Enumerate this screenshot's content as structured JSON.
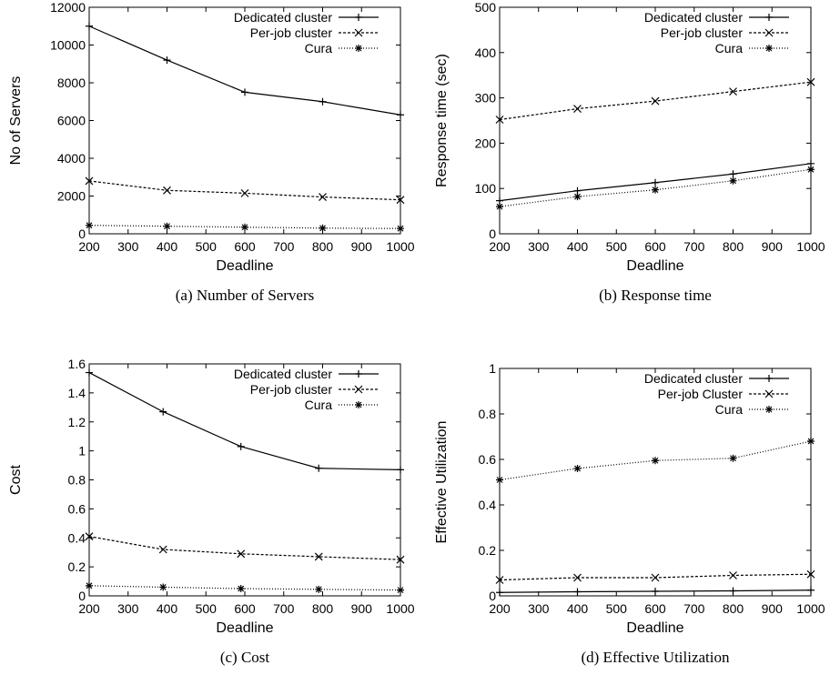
{
  "chart_data": [
    {
      "type": "line",
      "caption": "(a) Number of Servers",
      "xlabel": "Deadline",
      "ylabel": "No of Servers",
      "xlim": [
        200,
        1000
      ],
      "ylim": [
        0,
        12000
      ],
      "xticks": [
        "200",
        "300",
        "400",
        "500",
        "600",
        "700",
        "800",
        "900",
        "1000"
      ],
      "yticks": [
        "0",
        "2000",
        "4000",
        "6000",
        "8000",
        "10000",
        "12000"
      ],
      "x": [
        200,
        400,
        600,
        800,
        1000
      ],
      "legend_position": "top-right",
      "series": [
        {
          "name": "Dedicated cluster",
          "marker": "plus",
          "dash": "",
          "values": [
            11000,
            9200,
            7500,
            7000,
            6300
          ]
        },
        {
          "name": "Per-job cluster",
          "marker": "x",
          "dash": "3,2",
          "values": [
            2800,
            2300,
            2150,
            1950,
            1800
          ]
        },
        {
          "name": "Cura",
          "marker": "star",
          "dash": "1,2",
          "values": [
            450,
            400,
            350,
            300,
            280
          ]
        }
      ]
    },
    {
      "type": "line",
      "caption": "(b) Response time",
      "xlabel": "Deadline",
      "ylabel": "Response time (sec)",
      "xlim": [
        200,
        1000
      ],
      "ylim": [
        0,
        500
      ],
      "xticks": [
        "200",
        "300",
        "400",
        "500",
        "600",
        "700",
        "800",
        "900",
        "1000"
      ],
      "yticks": [
        "0",
        "100",
        "200",
        "300",
        "400",
        "500"
      ],
      "x": [
        200,
        400,
        600,
        800,
        1000
      ],
      "legend_position": "top-right",
      "series": [
        {
          "name": "Dedicated cluster",
          "marker": "plus",
          "dash": "",
          "values": [
            73,
            95,
            113,
            132,
            155
          ]
        },
        {
          "name": "Per-job cluster",
          "marker": "x",
          "dash": "3,2",
          "values": [
            252,
            276,
            293,
            314,
            335
          ]
        },
        {
          "name": "Cura",
          "marker": "star",
          "dash": "1,2",
          "values": [
            60,
            82,
            97,
            117,
            142
          ]
        }
      ]
    },
    {
      "type": "line",
      "caption": "(c) Cost",
      "xlabel": "Deadline",
      "ylabel": "Cost",
      "xlim": [
        200,
        1000
      ],
      "ylim": [
        0,
        1.6
      ],
      "xticks": [
        "200",
        "300",
        "400",
        "500",
        "600",
        "700",
        "800",
        "900",
        "1000"
      ],
      "yticks": [
        "0",
        "0.2",
        "0.4",
        "0.6",
        "0.8",
        "1",
        "1.2",
        "1.4",
        "1.6"
      ],
      "x": [
        200,
        390,
        590,
        790,
        1000
      ],
      "legend_position": "top-right",
      "series": [
        {
          "name": "Dedicated cluster",
          "marker": "plus",
          "dash": "",
          "values": [
            1.54,
            1.27,
            1.03,
            0.88,
            0.87
          ]
        },
        {
          "name": "Per-job cluster",
          "marker": "x",
          "dash": "3,2",
          "values": [
            0.41,
            0.32,
            0.29,
            0.27,
            0.25
          ]
        },
        {
          "name": "Cura",
          "marker": "star",
          "dash": "1,2",
          "values": [
            0.07,
            0.06,
            0.05,
            0.045,
            0.04
          ]
        }
      ]
    },
    {
      "type": "line",
      "caption": "(d) Effective Utilization",
      "xlabel": "Deadline",
      "ylabel": "Effective Utilization",
      "xlim": [
        200,
        1000
      ],
      "ylim": [
        0,
        1
      ],
      "xticks": [
        "200",
        "300",
        "400",
        "500",
        "600",
        "700",
        "800",
        "900",
        "1000"
      ],
      "yticks": [
        "0",
        "0.2",
        "0.4",
        "0.6",
        "0.8",
        "1"
      ],
      "x": [
        200,
        400,
        600,
        800,
        1000
      ],
      "legend_position": "top-right",
      "series": [
        {
          "name": "Dedicated cluster",
          "marker": "plus",
          "dash": "",
          "values": [
            0.015,
            0.018,
            0.02,
            0.022,
            0.025
          ]
        },
        {
          "name": "Per-job Cluster",
          "marker": "x",
          "dash": "3,2",
          "values": [
            0.07,
            0.08,
            0.08,
            0.09,
            0.095
          ]
        },
        {
          "name": "Cura",
          "marker": "star",
          "dash": "1,2",
          "values": [
            0.51,
            0.56,
            0.595,
            0.605,
            0.68
          ]
        }
      ]
    }
  ]
}
